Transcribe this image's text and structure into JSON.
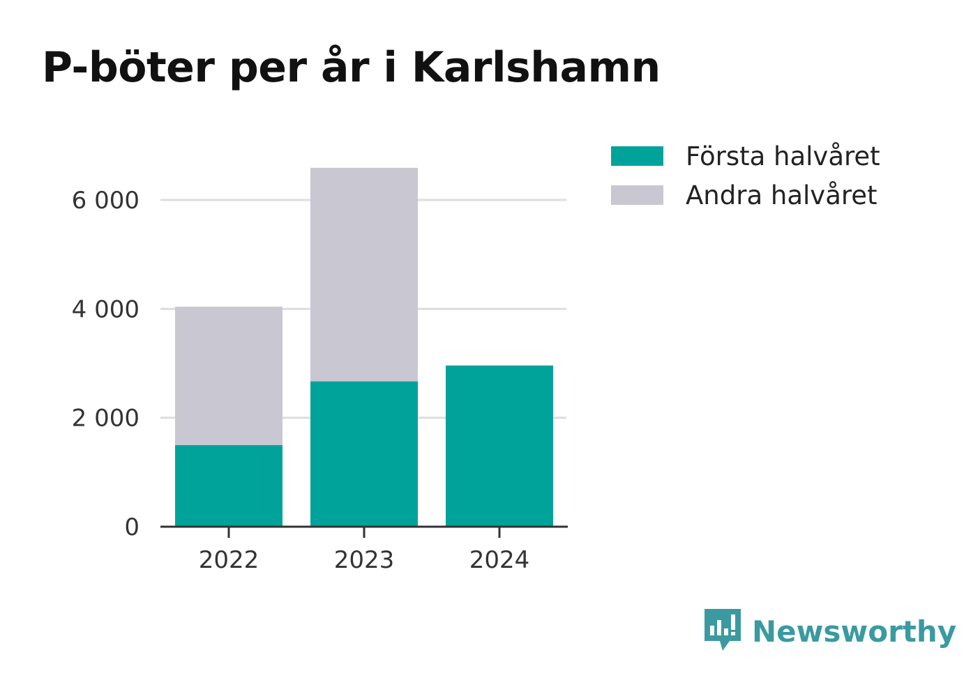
{
  "title": "P-böter per år i Karlshamn",
  "colors": {
    "first_half": "#00a39a",
    "second_half": "#c8c7d2",
    "grid": "#dddddd",
    "axis": "#333333",
    "brand": "#3a9aa0"
  },
  "legend": {
    "items": [
      {
        "label": "Första halvåret",
        "color": "#00a39a"
      },
      {
        "label": "Andra halvåret",
        "color": "#c8c7d2"
      }
    ]
  },
  "brand": {
    "name": "Newsworthy",
    "icon": "newsworthy-logo-icon"
  },
  "chart_data": {
    "type": "bar",
    "stacked": true,
    "title": "P-böter per år i Karlshamn",
    "categories": [
      "2022",
      "2023",
      "2024"
    ],
    "series": [
      {
        "name": "Första halvåret",
        "values": [
          1500,
          2670,
          2960
        ]
      },
      {
        "name": "Andra halvåret",
        "values": [
          2540,
          3920,
          0
        ]
      }
    ],
    "ylim": [
      0,
      6600
    ],
    "yticks": [
      0,
      2000,
      4000,
      6000
    ],
    "ytick_labels": [
      "0",
      "2 000",
      "4 000",
      "6 000"
    ],
    "grid": true,
    "legend_position": "top-right"
  }
}
